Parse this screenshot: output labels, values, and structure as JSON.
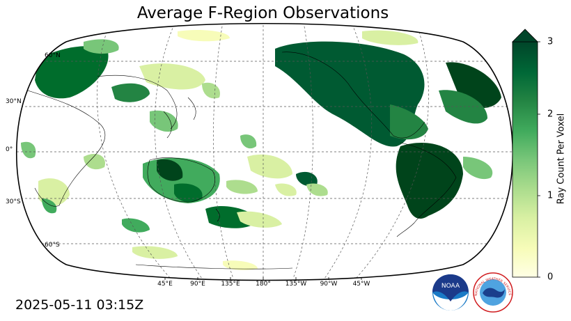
{
  "title": "Average F-Region Observations",
  "timestamp": "2025-05-11 03:15Z",
  "map": {
    "projection": "robinson",
    "central_longitude": 180,
    "lat_labels": [
      "60°N",
      "30°N",
      "0°",
      "30°S",
      "60°S"
    ],
    "lon_labels": [
      "45°E",
      "90°E",
      "135°E",
      "180°",
      "135°W",
      "90°W",
      "45°W"
    ]
  },
  "colorbar": {
    "label": "Ray Count Per Voxel",
    "ticks": [
      "0",
      "1",
      "2",
      "3"
    ],
    "min": 0,
    "max": 3,
    "extend": "max",
    "colormap": "YlGn",
    "colors": [
      "#ffffe5",
      "#f7fcb9",
      "#d9f0a3",
      "#addd8e",
      "#78c679",
      "#41ab5d",
      "#238443",
      "#006837",
      "#004529"
    ]
  },
  "regions": [
    {
      "name": "north-america",
      "value": 3.0
    },
    {
      "name": "south-america",
      "value": 3.0
    },
    {
      "name": "northern-europe",
      "value": 2.6
    },
    {
      "name": "central-asia",
      "value": 2.2
    },
    {
      "name": "australia",
      "value": 2.0
    },
    {
      "name": "southern-ocean-south-of-australia",
      "value": 2.2
    },
    {
      "name": "south-pacific",
      "value": 1.2
    },
    {
      "name": "indian-ocean",
      "value": 0.8
    }
  ],
  "logos": [
    {
      "name": "noaa",
      "text": "NOAA",
      "color": "#1a7ac6"
    },
    {
      "name": "nws",
      "text": "NATIONAL WEATHER SERVICE",
      "color": "#1a3f8c"
    }
  ]
}
